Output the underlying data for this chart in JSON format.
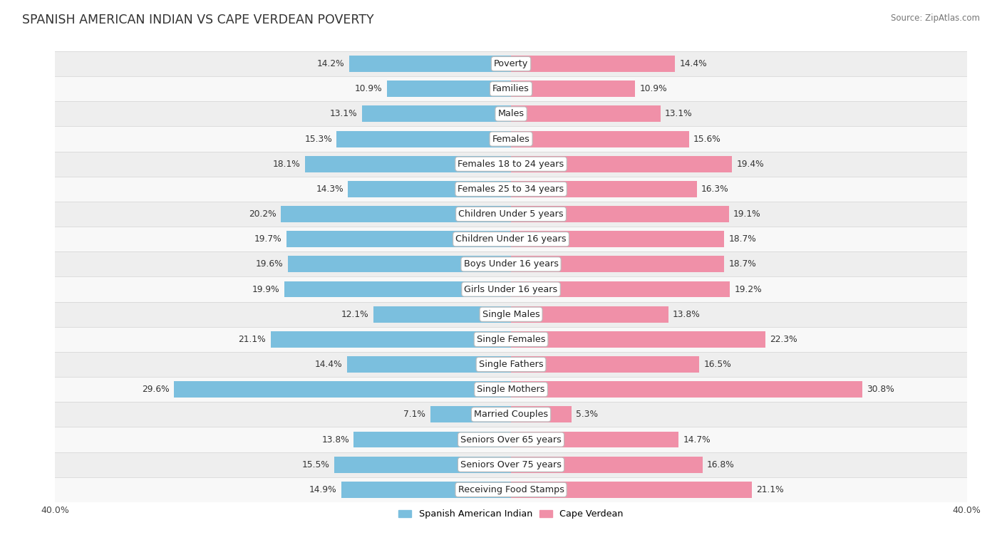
{
  "title": "SPANISH AMERICAN INDIAN VS CAPE VERDEAN POVERTY",
  "source": "Source: ZipAtlas.com",
  "categories": [
    "Poverty",
    "Families",
    "Males",
    "Females",
    "Females 18 to 24 years",
    "Females 25 to 34 years",
    "Children Under 5 years",
    "Children Under 16 years",
    "Boys Under 16 years",
    "Girls Under 16 years",
    "Single Males",
    "Single Females",
    "Single Fathers",
    "Single Mothers",
    "Married Couples",
    "Seniors Over 65 years",
    "Seniors Over 75 years",
    "Receiving Food Stamps"
  ],
  "left_values": [
    14.2,
    10.9,
    13.1,
    15.3,
    18.1,
    14.3,
    20.2,
    19.7,
    19.6,
    19.9,
    12.1,
    21.1,
    14.4,
    29.6,
    7.1,
    13.8,
    15.5,
    14.9
  ],
  "right_values": [
    14.4,
    10.9,
    13.1,
    15.6,
    19.4,
    16.3,
    19.1,
    18.7,
    18.7,
    19.2,
    13.8,
    22.3,
    16.5,
    30.8,
    5.3,
    14.7,
    16.8,
    21.1
  ],
  "left_color": "#7BBFDE",
  "right_color": "#F090A8",
  "row_color_odd": "#eeeeee",
  "row_color_even": "#f8f8f8",
  "max_val": 40.0,
  "legend_left": "Spanish American Indian",
  "legend_right": "Cape Verdean",
  "cat_fontsize": 9.2,
  "val_fontsize": 8.8,
  "title_fontsize": 12.5,
  "source_fontsize": 8.5,
  "axis_fontsize": 9.0
}
